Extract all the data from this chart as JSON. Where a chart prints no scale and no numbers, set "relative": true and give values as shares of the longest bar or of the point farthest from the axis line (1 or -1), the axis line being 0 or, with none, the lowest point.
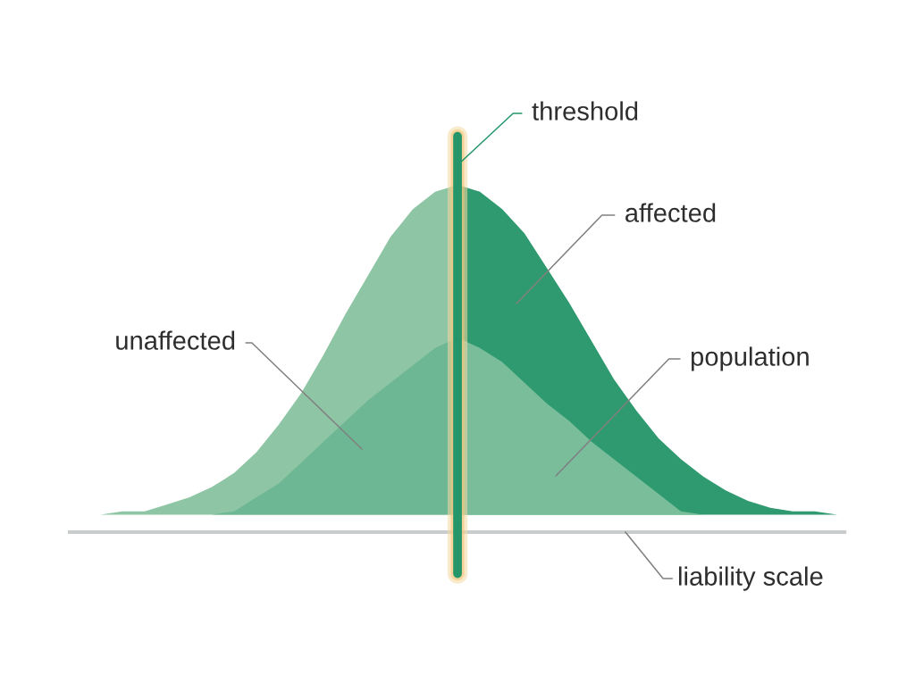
{
  "chart_data": {
    "type": "area",
    "relative": true,
    "xlabel": "liability scale",
    "annotations": [
      "threshold",
      "affected",
      "unaffected",
      "population"
    ],
    "categories": [
      null,
      null,
      null,
      null,
      null,
      null,
      null,
      null,
      null,
      null,
      null,
      null,
      null,
      null,
      null,
      null,
      null,
      null,
      null,
      null,
      null,
      null,
      null,
      null,
      null,
      null,
      null,
      null,
      null,
      null,
      null,
      null,
      null,
      null
    ],
    "series": [
      {
        "color": "#8ec5a4",
        "values": [
          0.05,
          0.06,
          0.06,
          0.08,
          0.1,
          0.13,
          0.17,
          0.23,
          0.31,
          0.4,
          0.51,
          0.63,
          0.74,
          0.85,
          0.93,
          0.98,
          1.0,
          null,
          null,
          null,
          null,
          null,
          null,
          null,
          null,
          null,
          null,
          null,
          null,
          null,
          null,
          null,
          null,
          null
        ]
      },
      {
        "color": "#2f9a70",
        "values": [
          null,
          null,
          null,
          null,
          null,
          null,
          null,
          null,
          null,
          null,
          null,
          null,
          null,
          null,
          null,
          null,
          1.0,
          0.98,
          0.93,
          0.86,
          0.76,
          0.66,
          0.55,
          0.44,
          0.35,
          0.27,
          0.21,
          0.16,
          0.12,
          0.09,
          0.07,
          0.06,
          0.06,
          0.05
        ]
      },
      {
        "color": "#6db794",
        "values": [
          null,
          null,
          null,
          null,
          null,
          0.05,
          0.06,
          0.1,
          0.14,
          0.2,
          0.26,
          0.32,
          0.38,
          0.43,
          0.48,
          0.53,
          0.56,
          null,
          null,
          null,
          null,
          null,
          null,
          null,
          null,
          null,
          null,
          null,
          null,
          null,
          null,
          null,
          null,
          null
        ]
      },
      {
        "color": "#79bd9b",
        "values": [
          null,
          null,
          null,
          null,
          null,
          null,
          null,
          null,
          null,
          null,
          null,
          null,
          null,
          null,
          null,
          null,
          0.56,
          0.53,
          0.49,
          0.43,
          0.37,
          0.32,
          0.26,
          0.21,
          0.16,
          0.11,
          0.06,
          0.05,
          null,
          null,
          null,
          null,
          null,
          null
        ]
      }
    ]
  }
}
